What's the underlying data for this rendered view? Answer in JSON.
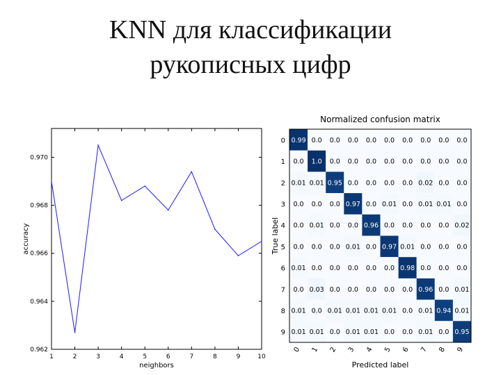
{
  "slide": {
    "title_line1": "KNN для классификации",
    "title_line2": "рукописных цифр"
  },
  "chart_data": [
    {
      "type": "line",
      "title": "",
      "xlabel": "neighbors",
      "ylabel": "accuracy",
      "x": [
        1,
        2,
        3,
        4,
        5,
        6,
        7,
        8,
        9,
        10
      ],
      "series": [
        {
          "values": [
            0.969,
            0.9627,
            0.9705,
            0.9682,
            0.9688,
            0.9678,
            0.9694,
            0.967,
            0.9659,
            0.9665
          ]
        }
      ],
      "xlim": [
        1,
        10
      ],
      "ylim": [
        0.962,
        0.9712
      ],
      "xticks": [
        "1",
        "2",
        "3",
        "4",
        "5",
        "6",
        "7",
        "8",
        "9",
        "10"
      ],
      "yticks": [
        "0.962",
        "0.964",
        "0.966",
        "0.968",
        "0.970"
      ],
      "grid": false,
      "line_color": "#2a2aff"
    },
    {
      "type": "heatmap",
      "title": "Normalized confusion matrix",
      "ylabel": "True label",
      "xlabel": "Predicted label",
      "row_labels": [
        "0",
        "1",
        "2",
        "3",
        "4",
        "5",
        "6",
        "7",
        "8",
        "9"
      ],
      "col_labels": [
        "0",
        "1",
        "2",
        "3",
        "4",
        "5",
        "6",
        "7",
        "8",
        "9"
      ],
      "cells": [
        [
          "0.99",
          "0.0",
          "0.0",
          "0.0",
          "0.0",
          "0.0",
          "0.0",
          "0.0",
          "0.0",
          "0.0"
        ],
        [
          "0.0",
          "1.0",
          "0.0",
          "0.0",
          "0.0",
          "0.0",
          "0.0",
          "0.0",
          "0.0",
          "0.0"
        ],
        [
          "0.01",
          "0.01",
          "0.95",
          "0.0",
          "0.0",
          "0.0",
          "0.0",
          "0.02",
          "0.0",
          "0.0"
        ],
        [
          "0.0",
          "0.0",
          "0.0",
          "0.97",
          "0.0",
          "0.01",
          "0.0",
          "0.01",
          "0.01",
          "0.0"
        ],
        [
          "0.0",
          "0.01",
          "0.0",
          "0.0",
          "0.96",
          "0.0",
          "0.0",
          "0.0",
          "0.0",
          "0.02"
        ],
        [
          "0.0",
          "0.0",
          "0.0",
          "0.01",
          "0.0",
          "0.97",
          "0.01",
          "0.0",
          "0.0",
          "0.0"
        ],
        [
          "0.01",
          "0.0",
          "0.0",
          "0.0",
          "0.0",
          "0.0",
          "0.98",
          "0.0",
          "0.0",
          "0.0"
        ],
        [
          "0.0",
          "0.03",
          "0.0",
          "0.0",
          "0.0",
          "0.0",
          "0.0",
          "0.96",
          "0.0",
          "0.01"
        ],
        [
          "0.01",
          "0.0",
          "0.01",
          "0.01",
          "0.01",
          "0.01",
          "0.0",
          "0.01",
          "0.94",
          "0.01"
        ],
        [
          "0.01",
          "0.01",
          "0.0",
          "0.01",
          "0.01",
          "0.0",
          "0.0",
          "0.01",
          "0.0",
          "0.95"
        ]
      ],
      "colormap": "Blues",
      "colorbar": false
    }
  ]
}
